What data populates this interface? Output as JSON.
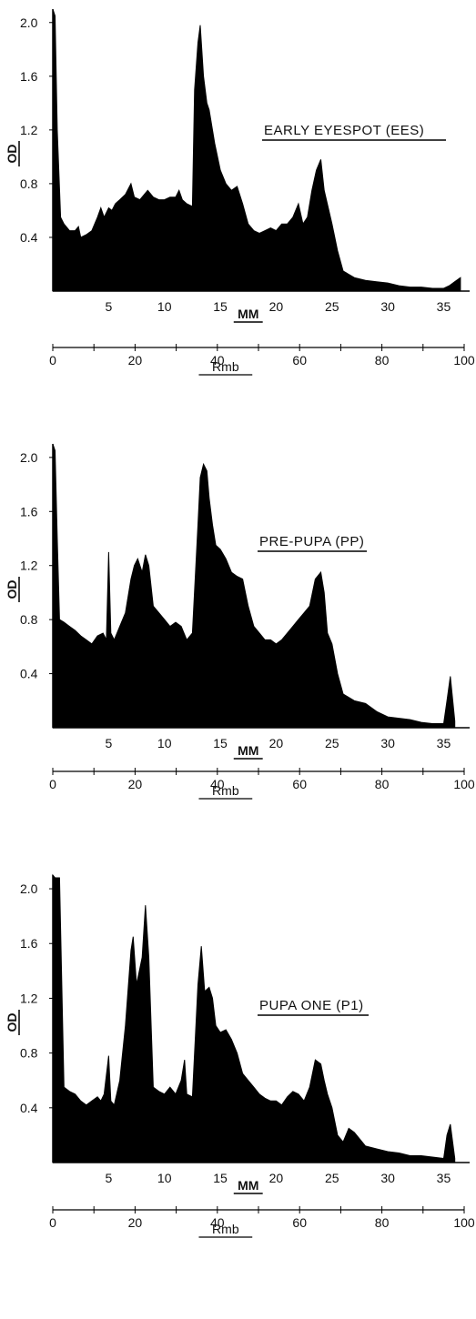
{
  "chart_data": [
    {
      "type": "area",
      "title": "EARLY EYESPOT (EES)",
      "ylabel": "OD",
      "xlabel": "MM",
      "x2label": "Rmb",
      "ylim": [
        0,
        2.1
      ],
      "xlim": [
        0,
        37
      ],
      "x2lim": [
        0,
        100
      ],
      "y_ticks": [
        "0.4",
        "0.8",
        "1.2",
        "1.6",
        "2.0"
      ],
      "x_ticks": [
        "5",
        "10",
        "15",
        "20",
        "25",
        "30",
        "35"
      ],
      "x2_ticks": [
        "0",
        "20",
        "40",
        "60",
        "80",
        "100"
      ],
      "grid": false,
      "x": [
        0,
        0.2,
        0.4,
        0.7,
        1,
        1.5,
        2,
        2.3,
        2.5,
        3,
        3.5,
        4,
        4.3,
        4.6,
        5,
        5.3,
        5.6,
        6,
        6.5,
        7,
        7.3,
        7.8,
        8.5,
        9,
        9.5,
        10,
        10.5,
        11,
        11.3,
        11.6,
        12,
        12.5,
        12.7,
        13,
        13.2,
        13.5,
        13.8,
        14,
        14.5,
        15,
        15.5,
        16,
        16.5,
        17,
        17.5,
        18,
        18.5,
        19,
        19.5,
        20,
        20.5,
        21,
        21.5,
        22,
        22.4,
        22.8,
        23.2,
        23.6,
        24,
        24.3,
        25,
        25.5,
        26,
        27,
        28,
        29,
        30,
        31,
        32,
        33,
        34,
        35,
        35.5,
        36,
        36.5
      ],
      "values": [
        2.1,
        2.05,
        1.2,
        0.55,
        0.5,
        0.45,
        0.45,
        0.48,
        0.4,
        0.42,
        0.45,
        0.55,
        0.62,
        0.55,
        0.62,
        0.6,
        0.65,
        0.68,
        0.72,
        0.8,
        0.7,
        0.68,
        0.75,
        0.7,
        0.68,
        0.68,
        0.7,
        0.7,
        0.75,
        0.68,
        0.65,
        0.63,
        1.5,
        1.85,
        1.98,
        1.6,
        1.4,
        1.35,
        1.1,
        0.9,
        0.8,
        0.75,
        0.78,
        0.65,
        0.5,
        0.45,
        0.43,
        0.45,
        0.47,
        0.45,
        0.5,
        0.5,
        0.55,
        0.65,
        0.5,
        0.55,
        0.75,
        0.9,
        0.98,
        0.75,
        0.5,
        0.3,
        0.15,
        0.1,
        0.08,
        0.07,
        0.06,
        0.04,
        0.03,
        0.03,
        0.02,
        0.02,
        0.04,
        0.07,
        0.1
      ]
    },
    {
      "type": "area",
      "title": "PRE-PUPA (PP)",
      "ylabel": "OD",
      "xlabel": "MM",
      "x2label": "Rmb",
      "ylim": [
        0,
        2.1
      ],
      "xlim": [
        0,
        37
      ],
      "x2lim": [
        0,
        100
      ],
      "y_ticks": [
        "0.4",
        "0.8",
        "1.2",
        "1.6",
        "2.0"
      ],
      "x_ticks": [
        "5",
        "10",
        "15",
        "20",
        "25",
        "30",
        "35"
      ],
      "x2_ticks": [
        "0",
        "20",
        "40",
        "60",
        "80",
        "100"
      ],
      "grid": false,
      "x": [
        0,
        0.2,
        0.4,
        0.6,
        1,
        1.5,
        2,
        2.5,
        3,
        3.5,
        4,
        4.5,
        4.8,
        5,
        5.2,
        5.5,
        6,
        6.5,
        7,
        7.3,
        7.6,
        8,
        8.3,
        8.6,
        9,
        9.5,
        10,
        10.5,
        11,
        11.5,
        12,
        12.5,
        13,
        13.2,
        13.5,
        13.8,
        14,
        14.3,
        14.6,
        15,
        15.5,
        16,
        16.5,
        17,
        17.5,
        18,
        18.5,
        19,
        19.5,
        20,
        20.5,
        21,
        21.5,
        22,
        22.5,
        23,
        23.5,
        24,
        24.3,
        24.6,
        25,
        25.5,
        26,
        27,
        28,
        29,
        30,
        31,
        32,
        33,
        34,
        35,
        35.3,
        35.6,
        36
      ],
      "values": [
        2.1,
        2.05,
        1.4,
        0.8,
        0.78,
        0.75,
        0.72,
        0.68,
        0.65,
        0.62,
        0.68,
        0.7,
        0.65,
        1.3,
        0.7,
        0.65,
        0.75,
        0.85,
        1.1,
        1.2,
        1.25,
        1.15,
        1.28,
        1.2,
        0.9,
        0.85,
        0.8,
        0.75,
        0.78,
        0.75,
        0.65,
        0.7,
        1.5,
        1.85,
        1.95,
        1.9,
        1.7,
        1.5,
        1.35,
        1.32,
        1.25,
        1.15,
        1.12,
        1.1,
        0.9,
        0.75,
        0.7,
        0.65,
        0.65,
        0.62,
        0.65,
        0.7,
        0.75,
        0.8,
        0.85,
        0.9,
        1.1,
        1.15,
        1.0,
        0.7,
        0.62,
        0.4,
        0.25,
        0.2,
        0.18,
        0.12,
        0.08,
        0.07,
        0.06,
        0.04,
        0.03,
        0.03,
        0.2,
        0.38,
        0.05
      ]
    },
    {
      "type": "area",
      "title": "PUPA ONE (P1)",
      "ylabel": "OD",
      "xlabel": "MM",
      "x2label": "Rmb",
      "ylim": [
        0,
        2.1
      ],
      "xlim": [
        0,
        37
      ],
      "x2lim": [
        0,
        100
      ],
      "y_ticks": [
        "0.4",
        "0.8",
        "1.2",
        "1.6",
        "2.0"
      ],
      "x_ticks": [
        "5",
        "10",
        "15",
        "20",
        "25",
        "30",
        "35"
      ],
      "x2_ticks": [
        "0",
        "20",
        "40",
        "60",
        "80",
        "100"
      ],
      "grid": false,
      "x": [
        0,
        0.2,
        0.6,
        1,
        1.5,
        2,
        2.5,
        3,
        3.5,
        4,
        4.3,
        4.6,
        5,
        5.2,
        5.5,
        6,
        6.5,
        7,
        7.2,
        7.5,
        8,
        8.3,
        8.6,
        9,
        9.5,
        10,
        10.5,
        11,
        11.5,
        11.8,
        12,
        12.5,
        13,
        13.3,
        13.6,
        14,
        14.3,
        14.6,
        15,
        15.5,
        16,
        16.5,
        17,
        17.5,
        18,
        18.5,
        19,
        19.5,
        20,
        20.5,
        21,
        21.5,
        22,
        22.5,
        23,
        23.5,
        24,
        24.3,
        24.6,
        25,
        25.5,
        26,
        26.5,
        27,
        28,
        29,
        30,
        31,
        32,
        33,
        34,
        35,
        35.3,
        35.6,
        36
      ],
      "values": [
        2.1,
        2.08,
        2.08,
        0.55,
        0.52,
        0.5,
        0.45,
        0.42,
        0.45,
        0.48,
        0.45,
        0.5,
        0.78,
        0.45,
        0.42,
        0.6,
        1.0,
        1.55,
        1.65,
        1.3,
        1.5,
        1.88,
        1.5,
        0.55,
        0.52,
        0.5,
        0.55,
        0.5,
        0.6,
        0.75,
        0.5,
        0.48,
        1.3,
        1.58,
        1.25,
        1.28,
        1.2,
        1.0,
        0.95,
        0.97,
        0.9,
        0.8,
        0.65,
        0.6,
        0.55,
        0.5,
        0.47,
        0.45,
        0.45,
        0.42,
        0.48,
        0.52,
        0.5,
        0.45,
        0.55,
        0.75,
        0.72,
        0.6,
        0.5,
        0.4,
        0.2,
        0.15,
        0.25,
        0.22,
        0.12,
        0.1,
        0.08,
        0.07,
        0.05,
        0.05,
        0.04,
        0.03,
        0.2,
        0.28,
        0.03
      ]
    }
  ]
}
